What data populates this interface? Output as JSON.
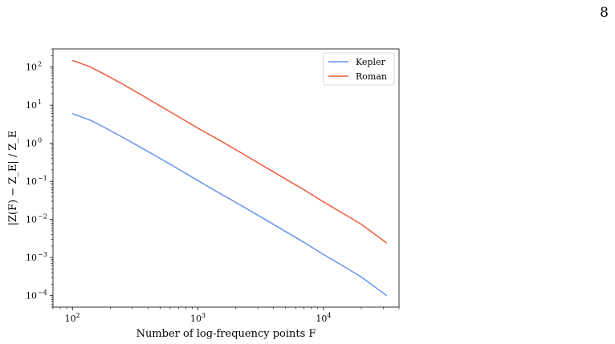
{
  "page": {
    "number": "8"
  },
  "chart_data": {
    "type": "line",
    "title": "",
    "xlabel": "Number of log-frequency points F",
    "ylabel": "|Z(F) − Z_E| / Z_E",
    "xscale": "log",
    "yscale": "log",
    "xlim": [
      70,
      40000
    ],
    "ylim": [
      5e-05,
      300
    ],
    "grid": false,
    "legend_position": "top-right",
    "x_ticks": [
      {
        "value": 100,
        "base": "10",
        "exp": "2"
      },
      {
        "value": 1000,
        "base": "10",
        "exp": "3"
      },
      {
        "value": 10000,
        "base": "10",
        "exp": "4"
      }
    ],
    "y_ticks": [
      {
        "value": 0.0001,
        "base": "10",
        "exp": "−4"
      },
      {
        "value": 0.001,
        "base": "10",
        "exp": "−3"
      },
      {
        "value": 0.01,
        "base": "10",
        "exp": "−2"
      },
      {
        "value": 0.1,
        "base": "10",
        "exp": "−1"
      },
      {
        "value": 1,
        "base": "10",
        "exp": "0"
      },
      {
        "value": 10,
        "base": "10",
        "exp": "1"
      },
      {
        "value": 100,
        "base": "10",
        "exp": "2"
      }
    ],
    "series": [
      {
        "name": "Kepler",
        "color": "#6495ed",
        "x": [
          100,
          140,
          180,
          250,
          350,
          500,
          700,
          1000,
          1500,
          2000,
          3000,
          5000,
          7000,
          10000,
          15000,
          20000,
          32000
        ],
        "y": [
          6.0,
          4.0,
          2.6,
          1.45,
          0.78,
          0.4,
          0.21,
          0.105,
          0.048,
          0.028,
          0.013,
          0.0048,
          0.0025,
          0.0012,
          0.00055,
          0.00031,
          0.0001
        ]
      },
      {
        "name": "Roman",
        "color": "#f05c3c",
        "x": [
          100,
          140,
          180,
          250,
          350,
          500,
          700,
          1000,
          1500,
          2000,
          3000,
          5000,
          7000,
          10000,
          15000,
          20000,
          32000
        ],
        "y": [
          150,
          100,
          65,
          36,
          19,
          9.5,
          5.0,
          2.5,
          1.18,
          0.68,
          0.31,
          0.115,
          0.06,
          0.029,
          0.0132,
          0.0075,
          0.0024
        ]
      }
    ]
  }
}
